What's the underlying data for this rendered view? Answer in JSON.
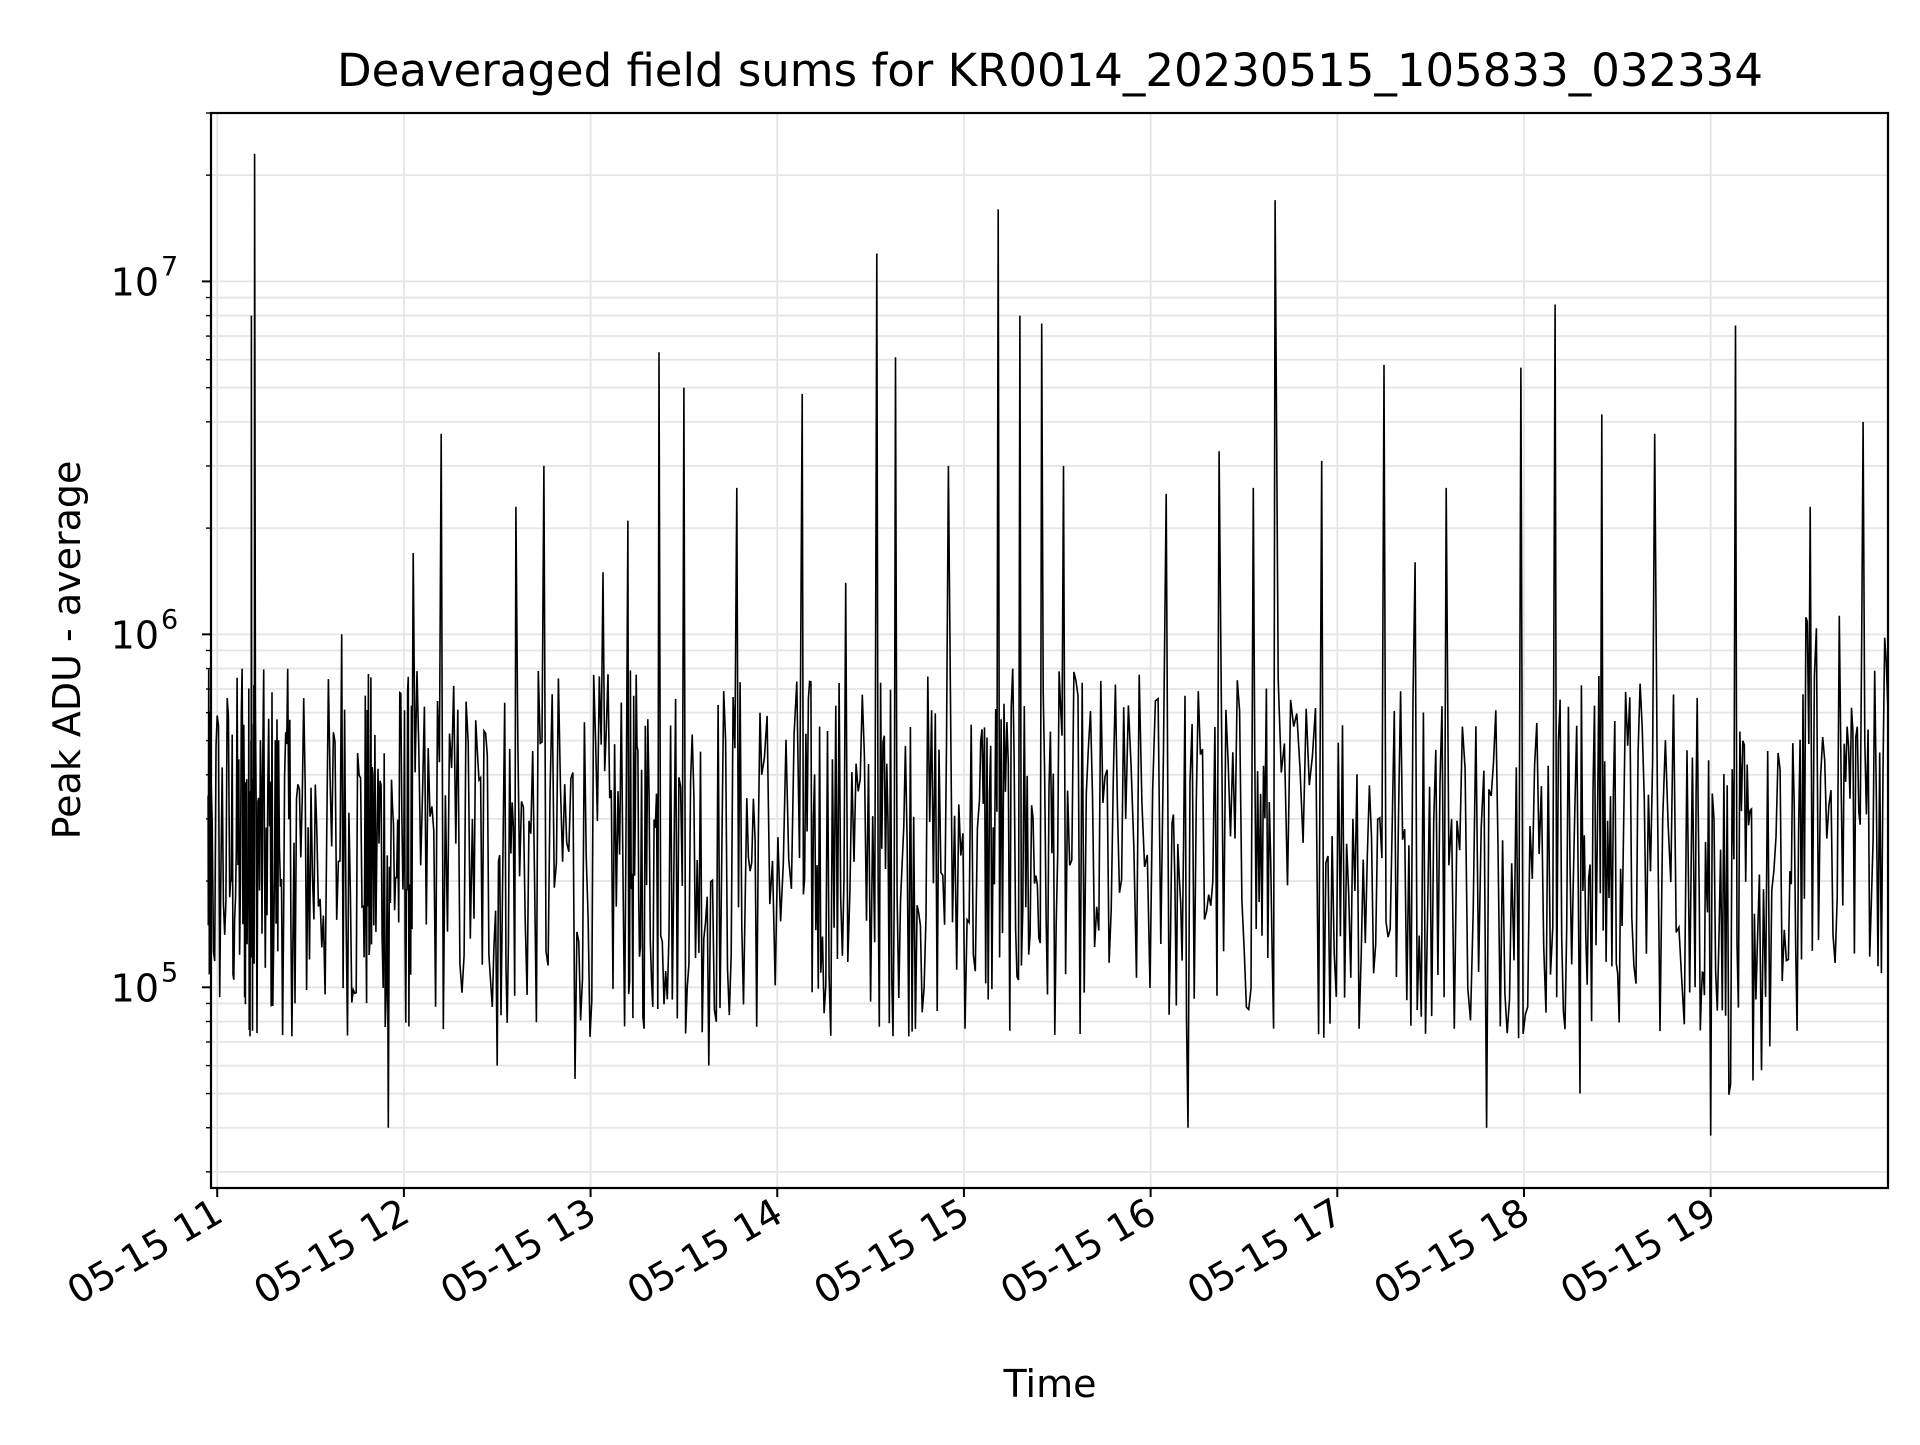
{
  "chart_data": {
    "type": "line",
    "title": "Deaveraged field sums for KR0014_20230515_105833_032334",
    "xlabel": "Time",
    "ylabel": "Peak ADU - average",
    "yscale": "log",
    "xlim": [
      "2023-05-15 10:58",
      "2023-05-15 19:57"
    ],
    "ylim": [
      27000,
      30000000
    ],
    "grid": true,
    "line_color": "#000000",
    "grid_color": "#e5e5e5",
    "x_ticks": [
      "05-15 11",
      "05-15 12",
      "05-15 13",
      "05-15 14",
      "05-15 15",
      "05-15 16",
      "05-15 17",
      "05-15 18",
      "05-15 19"
    ],
    "y_ticks": [
      {
        "base": "10",
        "exp": "5",
        "value": 100000
      },
      {
        "base": "10",
        "exp": "6",
        "value": 1000000
      },
      {
        "base": "10",
        "exp": "7",
        "value": 10000000
      }
    ],
    "series": [
      {
        "x": [
          "2023-05-15 10:58",
          "2023-05-15 11:04",
          "2023-05-15 11:08",
          "2023-05-15 11:10",
          "2023-05-15 11:11",
          "2023-05-15 11:12",
          "2023-05-15 11:16",
          "2023-05-15 11:20",
          "2023-05-15 11:25",
          "2023-05-15 11:32",
          "2023-05-15 11:40",
          "2023-05-15 11:47",
          "2023-05-15 11:50",
          "2023-05-15 11:55",
          "2023-05-15 12:00",
          "2023-05-15 12:03",
          "2023-05-15 12:12",
          "2023-05-15 12:22",
          "2023-05-15 12:30",
          "2023-05-15 12:36",
          "2023-05-15 12:45",
          "2023-05-15 12:55",
          "2023-05-15 13:04",
          "2023-05-15 13:12",
          "2023-05-15 13:16",
          "2023-05-15 13:22",
          "2023-05-15 13:30",
          "2023-05-15 13:38",
          "2023-05-15 13:47",
          "2023-05-15 13:55",
          "2023-05-15 14:08",
          "2023-05-15 14:14",
          "2023-05-15 14:22",
          "2023-05-15 14:32",
          "2023-05-15 14:38",
          "2023-05-15 14:46",
          "2023-05-15 14:55",
          "2023-05-15 15:05",
          "2023-05-15 15:11",
          "2023-05-15 15:18",
          "2023-05-15 15:25",
          "2023-05-15 15:32",
          "2023-05-15 15:42",
          "2023-05-15 15:52",
          "2023-05-15 16:05",
          "2023-05-15 16:12",
          "2023-05-15 16:22",
          "2023-05-15 16:33",
          "2023-05-15 16:40",
          "2023-05-15 16:55",
          "2023-05-15 17:05",
          "2023-05-15 17:15",
          "2023-05-15 17:25",
          "2023-05-15 17:35",
          "2023-05-15 17:48",
          "2023-05-15 17:59",
          "2023-05-15 18:10",
          "2023-05-15 18:18",
          "2023-05-15 18:25",
          "2023-05-15 18:32",
          "2023-05-15 18:42",
          "2023-05-15 18:55",
          "2023-05-15 19:00",
          "2023-05-15 19:08",
          "2023-05-15 19:15",
          "2023-05-15 19:25",
          "2023-05-15 19:32",
          "2023-05-15 19:42",
          "2023-05-15 19:49",
          "2023-05-15 19:57"
        ],
        "y": [
          400000,
          180000,
          800000,
          220000,
          8000000,
          23000000,
          160000,
          250000,
          90000,
          280000,
          1000000,
          170000,
          400000,
          40000,
          260000,
          1700000,
          3700000,
          300000,
          60000,
          2300000,
          3000000,
          55000,
          1500000,
          2100000,
          130000,
          6300000,
          5000000,
          60000,
          2600000,
          400000,
          4800000,
          110000,
          1400000,
          12000000,
          6100000,
          150000,
          3000000,
          340000,
          16000000,
          8000000,
          7600000,
          3000000,
          130000,
          300000,
          2500000,
          40000,
          3300000,
          2600000,
          17000000,
          3100000,
          300000,
          5800000,
          1600000,
          2600000,
          40000,
          5700000,
          8600000,
          50000,
          4200000,
          270000,
          3700000,
          100000,
          38000,
          7500000,
          130000,
          120000,
          2300000,
          350000,
          4000000,
          600000
        ]
      }
    ]
  }
}
